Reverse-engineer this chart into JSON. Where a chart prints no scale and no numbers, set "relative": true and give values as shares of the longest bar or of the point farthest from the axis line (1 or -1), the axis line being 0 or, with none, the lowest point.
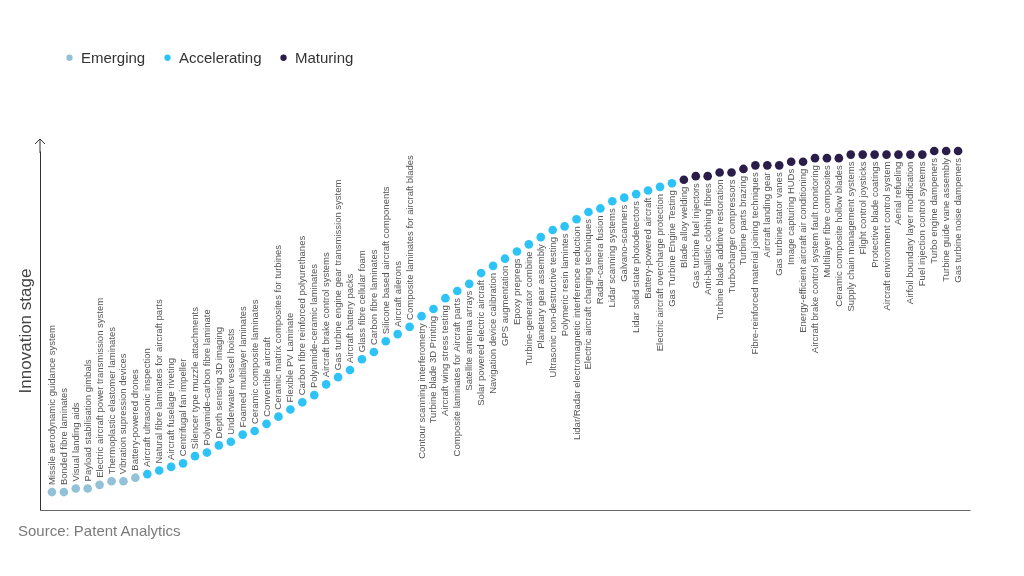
{
  "chart_data": {
    "type": "scatter",
    "ylabel": "Innovation stage",
    "relative": true,
    "legend": "top left",
    "marker": "circle",
    "grid": false,
    "annotations": [
      "Source: Patent Analytics"
    ],
    "categories": [
      "Missile aerodynamic guidance system",
      "Bonded fibre laminates",
      "Visual landing aids",
      "Payload stabilisation gimbals",
      "Electric aircraft power transmission system",
      "Thermoplastic elastomer laminates",
      "Vibration supression devices",
      "Battery-powered drones",
      "Aircraft ultrasonic inspection",
      "Natural fibre laminates for aircraft parts",
      "Aircraft fuselage riveting",
      "Centrifugal fan impeller",
      "Silencer type muzzle attachments",
      "Polyamide-carbon fibre laminate",
      "Depth sensing 3D imaging",
      "Underwater vessel hoists",
      "Foamed multilayer laminates",
      "Ceramic composite laminates",
      "Convertible aircraft",
      "Ceramic matrix composites for turbines",
      "Flexible PV Laminate",
      "Carbon fibre reinforced polyurethanes",
      "Polyamide-ceramic laminates",
      "Aircraft brake control systems",
      "Gas turbine engine gear transmission system",
      "Aircraft battery packs",
      "Glass fibre cellular foam",
      "Carbon fibre laminates",
      "Silicone based aircraft components",
      "Aircraft ailerons",
      "Composite laminates for aircraft blades",
      "Contour scanning interferometry",
      "Turbine blade 3D Printing",
      "Aircraft wing stress testing",
      "Composite laminates for Aircraft parts",
      "Satellite antenna arrays",
      "Solar powered electric aircraft",
      "Navigation device calibration",
      "GPS augmentation",
      "Epoxy prepregs",
      "Turbine-generator combine",
      "Planetary gear assembly",
      "Ultrasonic non-destructive testing",
      "Polymeric resin lamintes",
      "Lidar/Radar electromagnetic interference reduction",
      "Electric aircraft charging techniques",
      "Radar-camera fusion",
      "Lidar scanning systems",
      "Galvano-scanners",
      "Lidar solid state photodetectors",
      "Battery-powered aircraft",
      "Electric aircraft overcharge protection",
      "Gas Turbine Engine Testing",
      "Blade alloy welding",
      "Gas turbine fuel injectors",
      "Anti-ballistic clothing fibres",
      "Turbine blade additive restoration",
      "Turbocharger compressors",
      "Turbine parts brazing",
      "Fibre-reinforced material joining techniques",
      "Aircraft landing gear",
      "Gas turbine stator vanes",
      "Image capturing HUDs",
      "Energy-efficient aircraft air conditioning",
      "Aircraft brake control system fault monitoring",
      "Multilayer fibre composites",
      "Ceramic composite hollow blades",
      "Supply chain management systems",
      "Flight control joysticks",
      "Protective blade coatings",
      "Aircraft environment control system",
      "Aerial refueling",
      "Airfoil boundary layer modification",
      "Fuel injection control systems",
      "Turbo engine dampeners",
      "Turbine guide vane assembly",
      "Gas turbine noise dampeners"
    ],
    "series": [
      {
        "name": "Emerging",
        "color": "#92c1d8",
        "values": [
          0.05,
          0.05,
          0.06,
          0.06,
          0.07,
          0.08,
          0.08,
          0.09,
          null,
          null,
          null,
          null,
          null,
          null,
          null,
          null,
          null,
          null,
          null,
          null,
          null,
          null,
          null,
          null,
          null,
          null,
          null,
          null,
          null,
          null,
          null,
          null,
          null,
          null,
          null,
          null,
          null,
          null,
          null,
          null,
          null,
          null,
          null,
          null,
          null,
          null,
          null,
          null,
          null,
          null,
          null,
          null,
          null,
          null,
          null,
          null,
          null,
          null,
          null,
          null,
          null,
          null,
          null,
          null,
          null,
          null,
          null,
          null,
          null,
          null,
          null,
          null,
          null,
          null,
          null,
          null,
          null
        ]
      },
      {
        "name": "Accelerating",
        "color": "#2ec3f7",
        "values": [
          null,
          null,
          null,
          null,
          null,
          null,
          null,
          null,
          0.1,
          0.11,
          0.12,
          0.13,
          0.15,
          0.16,
          0.18,
          0.19,
          0.21,
          0.22,
          0.24,
          0.26,
          0.28,
          0.3,
          0.32,
          0.35,
          0.37,
          0.39,
          0.42,
          0.44,
          0.47,
          0.49,
          0.51,
          0.54,
          0.56,
          0.59,
          0.61,
          0.63,
          0.66,
          0.68,
          0.7,
          0.72,
          0.74,
          0.76,
          0.78,
          0.79,
          0.81,
          0.83,
          0.84,
          0.86,
          0.87,
          0.88,
          0.89,
          0.9,
          0.91,
          null,
          null,
          null,
          null,
          null,
          null,
          null,
          null,
          null,
          null,
          null,
          null,
          null,
          null,
          null,
          null,
          null,
          null,
          null,
          null,
          null,
          null,
          null,
          null
        ]
      },
      {
        "name": "Maturing",
        "color": "#2b1d4a",
        "values": [
          null,
          null,
          null,
          null,
          null,
          null,
          null,
          null,
          null,
          null,
          null,
          null,
          null,
          null,
          null,
          null,
          null,
          null,
          null,
          null,
          null,
          null,
          null,
          null,
          null,
          null,
          null,
          null,
          null,
          null,
          null,
          null,
          null,
          null,
          null,
          null,
          null,
          null,
          null,
          null,
          null,
          null,
          null,
          null,
          null,
          null,
          null,
          null,
          null,
          null,
          null,
          null,
          null,
          0.92,
          0.93,
          0.93,
          0.94,
          0.94,
          0.95,
          0.96,
          0.96,
          0.96,
          0.97,
          0.97,
          0.98,
          0.98,
          0.98,
          0.99,
          0.99,
          0.99,
          0.99,
          0.99,
          0.99,
          0.99,
          1.0,
          1.0,
          1.0
        ]
      }
    ]
  }
}
